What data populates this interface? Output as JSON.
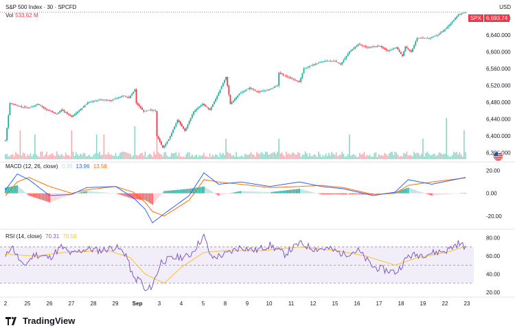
{
  "header": {
    "title": "S&P 500 Index · 30 · SPCFD",
    "vol_label": "Vol",
    "vol_value": "533.62 M",
    "currency": "USD",
    "macd_label": "MACD (12, 26, close)",
    "macd_values": [
      "0.39",
      "13.96",
      "13.58"
    ],
    "rsi_label": "RSI (14, close)",
    "rsi_values": [
      "70.31",
      "70.58"
    ],
    "last_symbol": "SPX",
    "last_price": "6,693.74"
  },
  "colors": {
    "up": "#22ab94",
    "down": "#f23645",
    "macd_line": "#2962ff",
    "signal_line": "#ff6d00",
    "rsi_line": "#7e57c2",
    "rsi_ma": "#fbc02d"
  },
  "branding": "TradingView",
  "chart_data": [
    {
      "type": "candlestick",
      "title": "S&P 500 Index · 30 · SPCFD",
      "x": [
        "2",
        "25",
        "26",
        "27",
        "28",
        "29",
        "Sep",
        "3",
        "4",
        "5",
        "8",
        "9",
        "10",
        "11",
        "12",
        "15",
        "16",
        "17",
        "18",
        "19",
        "22",
        "23"
      ],
      "y_ticks": [
        6360,
        6400,
        6440,
        6480,
        6520,
        6560,
        6600,
        6640,
        6680
      ],
      "ylim": [
        6348,
        6700
      ],
      "last_price": 6693.74,
      "path": [
        [
          0,
          6390
        ],
        [
          3,
          6478
        ],
        [
          10,
          6470
        ],
        [
          16,
          6466
        ],
        [
          22,
          6476
        ],
        [
          28,
          6462
        ],
        [
          35,
          6452
        ],
        [
          38,
          6462
        ],
        [
          45,
          6446
        ],
        [
          52,
          6466
        ],
        [
          56,
          6480
        ],
        [
          65,
          6486
        ],
        [
          72,
          6484
        ],
        [
          80,
          6496
        ],
        [
          84,
          6490
        ],
        [
          88,
          6510
        ],
        [
          89,
          6478
        ],
        [
          94,
          6458
        ],
        [
          98,
          6462
        ],
        [
          102,
          6460
        ],
        [
          103,
          6400
        ],
        [
          107,
          6372
        ],
        [
          111,
          6392
        ],
        [
          117,
          6438
        ],
        [
          122,
          6412
        ],
        [
          128,
          6458
        ],
        [
          134,
          6476
        ],
        [
          139,
          6462
        ],
        [
          143,
          6488
        ],
        [
          150,
          6540
        ],
        [
          153,
          6476
        ],
        [
          159,
          6500
        ],
        [
          166,
          6514
        ],
        [
          172,
          6504
        ],
        [
          179,
          6510
        ],
        [
          185,
          6520
        ],
        [
          186,
          6550
        ],
        [
          193,
          6538
        ],
        [
          200,
          6528
        ],
        [
          203,
          6560
        ],
        [
          210,
          6570
        ],
        [
          217,
          6578
        ],
        [
          224,
          6578
        ],
        [
          228,
          6570
        ],
        [
          234,
          6600
        ],
        [
          240,
          6618
        ],
        [
          246,
          6610
        ],
        [
          254,
          6614
        ],
        [
          260,
          6602
        ],
        [
          266,
          6610
        ],
        [
          270,
          6590
        ],
        [
          272,
          6612
        ],
        [
          276,
          6600
        ],
        [
          280,
          6632
        ],
        [
          288,
          6632
        ],
        [
          294,
          6640
        ],
        [
          300,
          6656
        ],
        [
          308,
          6688
        ],
        [
          313,
          6693.74
        ]
      ],
      "volume_spikes": [
        [
          10,
          0.7
        ],
        [
          20,
          0.6
        ],
        [
          45,
          0.7
        ],
        [
          62,
          0.6
        ],
        [
          67,
          0.6
        ],
        [
          88,
          0.8
        ],
        [
          103,
          0.6
        ],
        [
          150,
          0.5
        ],
        [
          186,
          0.5
        ],
        [
          234,
          0.6
        ],
        [
          284,
          0.5
        ],
        [
          300,
          1.0
        ],
        [
          312,
          0.7
        ]
      ],
      "series": [
        {
          "name": "Vol",
          "last": "533.62 M"
        }
      ]
    },
    {
      "type": "line",
      "title": "MACD (12, 26, close)",
      "y_ticks": [
        20.0,
        0.0,
        -20.0
      ],
      "ylim": [
        -28,
        24
      ],
      "series": [
        {
          "name": "MACD",
          "values_at_nodes": [
            [
              0,
              3
            ],
            [
              8,
              17
            ],
            [
              16,
              12
            ],
            [
              30,
              -2
            ],
            [
              45,
              -1
            ],
            [
              55,
              5
            ],
            [
              75,
              6
            ],
            [
              87,
              -4
            ],
            [
              95,
              -14
            ],
            [
              100,
              -26
            ],
            [
              108,
              -18
            ],
            [
              125,
              -2
            ],
            [
              135,
              18
            ],
            [
              145,
              8
            ],
            [
              160,
              10
            ],
            [
              180,
              6
            ],
            [
              200,
              10
            ],
            [
              215,
              6
            ],
            [
              230,
              4
            ],
            [
              250,
              -2
            ],
            [
              265,
              1
            ],
            [
              274,
              12
            ],
            [
              290,
              8
            ],
            [
              313,
              14
            ]
          ]
        },
        {
          "name": "Signal",
          "values_at_nodes": [
            [
              0,
              -2
            ],
            [
              8,
              10
            ],
            [
              16,
              14
            ],
            [
              30,
              6
            ],
            [
              45,
              0
            ],
            [
              55,
              3
            ],
            [
              75,
              6
            ],
            [
              87,
              1
            ],
            [
              95,
              -8
            ],
            [
              100,
              -16
            ],
            [
              108,
              -20
            ],
            [
              125,
              -6
            ],
            [
              135,
              12
            ],
            [
              145,
              10
            ],
            [
              160,
              8
            ],
            [
              180,
              5
            ],
            [
              200,
              6
            ],
            [
              215,
              7
            ],
            [
              230,
              5
            ],
            [
              250,
              -1
            ],
            [
              265,
              0
            ],
            [
              274,
              7
            ],
            [
              290,
              10
            ],
            [
              313,
              13.58
            ]
          ]
        }
      ],
      "last": {
        "histogram": 0.39,
        "macd": 13.96,
        "signal": 13.58
      }
    },
    {
      "type": "line",
      "title": "RSI (14, close)",
      "y_ticks": [
        80.0,
        60.0,
        40.0,
        20.0
      ],
      "ylim": [
        17,
        85
      ],
      "bands": [
        70,
        50,
        30
      ],
      "series": [
        {
          "name": "RSI",
          "values_at_nodes": [
            [
              0,
              58
            ],
            [
              4,
              72
            ],
            [
              8,
              60
            ],
            [
              12,
              48
            ],
            [
              20,
              62
            ],
            [
              30,
              58
            ],
            [
              38,
              70
            ],
            [
              45,
              62
            ],
            [
              55,
              68
            ],
            [
              65,
              66
            ],
            [
              75,
              70
            ],
            [
              82,
              62
            ],
            [
              87,
              35
            ],
            [
              92,
              34
            ],
            [
              95,
              20
            ],
            [
              100,
              28
            ],
            [
              106,
              54
            ],
            [
              115,
              58
            ],
            [
              125,
              60
            ],
            [
              135,
              82
            ],
            [
              140,
              58
            ],
            [
              150,
              62
            ],
            [
              160,
              70
            ],
            [
              170,
              66
            ],
            [
              180,
              72
            ],
            [
              190,
              62
            ],
            [
              200,
              74
            ],
            [
              210,
              68
            ],
            [
              220,
              68
            ],
            [
              230,
              62
            ],
            [
              240,
              66
            ],
            [
              250,
              48
            ],
            [
              260,
              44
            ],
            [
              266,
              42
            ],
            [
              274,
              60
            ],
            [
              285,
              62
            ],
            [
              300,
              66
            ],
            [
              308,
              74
            ],
            [
              313,
              70.31
            ]
          ]
        },
        {
          "name": "RSI MA",
          "values_at_nodes": [
            [
              0,
              62
            ],
            [
              20,
              60
            ],
            [
              40,
              64
            ],
            [
              70,
              66
            ],
            [
              85,
              58
            ],
            [
              95,
              40
            ],
            [
              108,
              30
            ],
            [
              120,
              48
            ],
            [
              135,
              64
            ],
            [
              150,
              66
            ],
            [
              175,
              66
            ],
            [
              200,
              70
            ],
            [
              225,
              66
            ],
            [
              245,
              60
            ],
            [
              265,
              50
            ],
            [
              280,
              58
            ],
            [
              300,
              64
            ],
            [
              313,
              70.58
            ]
          ]
        }
      ],
      "last": {
        "rsi": 70.31,
        "ma": 70.58
      }
    }
  ]
}
